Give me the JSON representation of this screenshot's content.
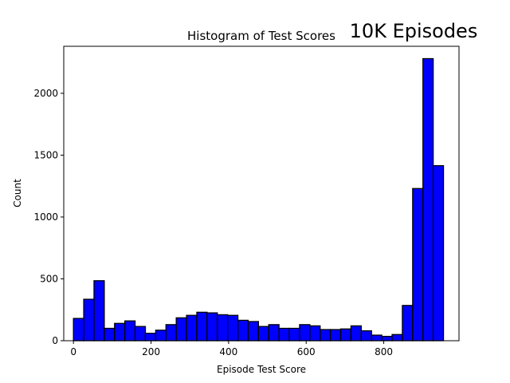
{
  "chart_data": {
    "type": "bar",
    "title": "Histogram of Test Scores",
    "annotation": "10K Episodes",
    "xlabel": "Episode Test Score",
    "ylabel": "Count",
    "xlim": [
      -25,
      994
    ],
    "ylim": [
      0,
      2380
    ],
    "x_ticks": [
      0,
      200,
      400,
      600,
      800
    ],
    "y_ticks": [
      0,
      500,
      1000,
      1500,
      2000
    ],
    "bin_edges": [
      0,
      26.5,
      53,
      79.5,
      106,
      132.5,
      159,
      185.5,
      212,
      238.5,
      265,
      291.5,
      318,
      344.5,
      371,
      397.5,
      424,
      450.5,
      477,
      503.5,
      530,
      556.5,
      583,
      609.5,
      636,
      662.5,
      689,
      715.5,
      742,
      768.5,
      795,
      821.5,
      848,
      874.5,
      901,
      927.5,
      954
    ],
    "values": [
      180,
      335,
      485,
      100,
      140,
      160,
      115,
      60,
      85,
      130,
      185,
      205,
      230,
      225,
      210,
      205,
      165,
      155,
      115,
      130,
      100,
      100,
      130,
      120,
      90,
      90,
      95,
      120,
      80,
      45,
      35,
      50,
      285,
      1230,
      2280,
      1415
    ],
    "color": "#0000ff",
    "edge_color": "#000000",
    "grid": false
  }
}
